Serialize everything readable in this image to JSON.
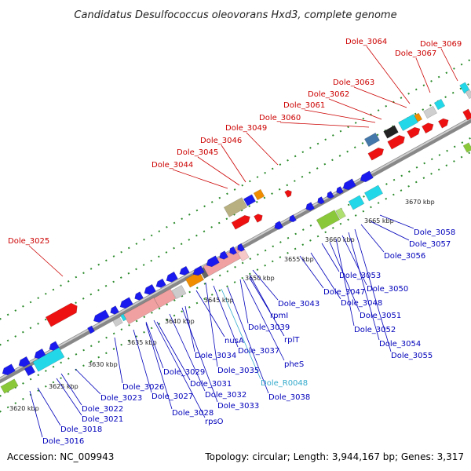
{
  "title": "Candidatus Desulfococcus oleovorans Hxd3, complete genome",
  "accession": "Accession: NC_009943",
  "stats": "Topology: circular; Length: 3,944,167 bp; Genes: 3,317",
  "colors": {
    "top_label": "#cc0000",
    "bottom_label": "#0000bb",
    "rna_label": "#33aacc",
    "backbone": "#9a9a9a",
    "tick": "#2a8a2a"
  },
  "kbp_labels": [
    "3620 kbp",
    "3625 kbp",
    "3630 kbp",
    "3635 kbp",
    "3640 kbp",
    "3645 kbp",
    "3650 kbp",
    "3655 kbp",
    "3660 kbp",
    "3665 kbp",
    "3670 kbp"
  ],
  "top_labels": [
    "Dole_3025",
    "Dole_3044",
    "Dole_3045",
    "Dole_3046",
    "Dole_3049",
    "Dole_3060",
    "Dole_3061",
    "Dole_3062",
    "Dole_3063",
    "Dole_3064",
    "Dole_3067",
    "Dole_3069"
  ],
  "bottom_labels": [
    "Dole_3016",
    "Dole_3018",
    "Dole_3021",
    "Dole_3022",
    "Dole_3023",
    "Dole_3026",
    "Dole_3027",
    "Dole_3028",
    "rpsO",
    "Dole_3029",
    "Dole_3031",
    "Dole_3032",
    "Dole_3033",
    "Dole_3034",
    "nusA",
    "Dole_3035",
    "Dole_3037",
    "Dole_R0048",
    "Dole_3038",
    "pheS",
    "rplT",
    "Dole_3039",
    "rpmI",
    "Dole_3043",
    "Dole_3047",
    "Dole_3048",
    "Dole_3053",
    "Dole_3051",
    "Dole_3052",
    "Dole_3050",
    "Dole_3054",
    "Dole_3055",
    "Dole_3056",
    "Dole_3057",
    "Dole_3058"
  ]
}
